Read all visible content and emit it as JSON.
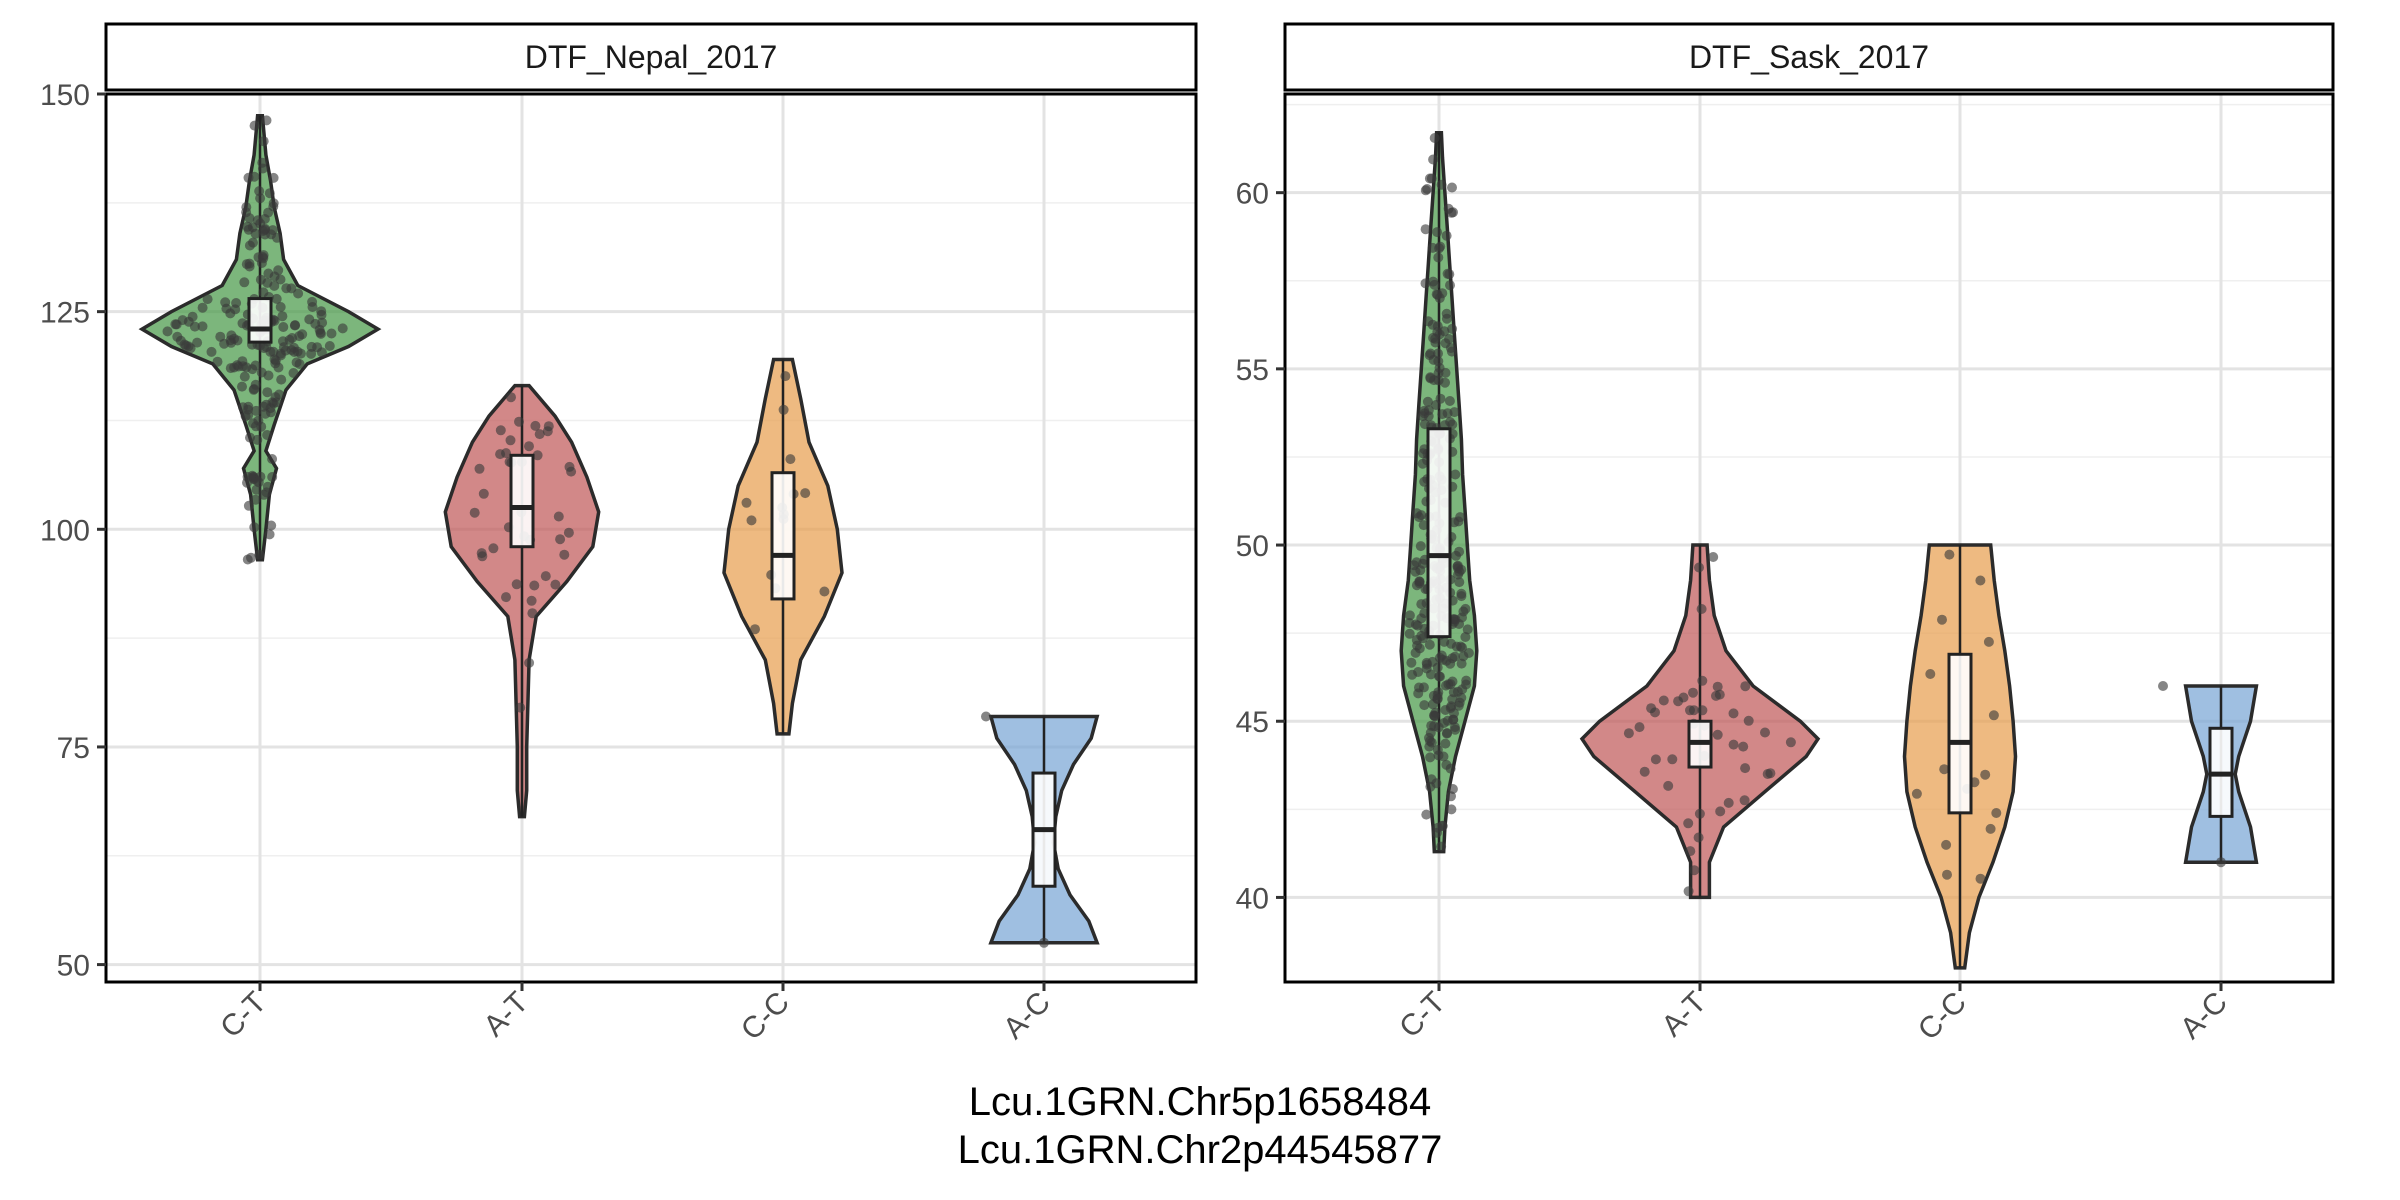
{
  "chart_data": [
    {
      "type": "violin",
      "facet_title": "DTF_Nepal_2017",
      "categories": [
        "C-T",
        "A-T",
        "C-C",
        "A-C"
      ],
      "ylim": [
        48,
        150
      ],
      "yticks": [
        50,
        75,
        100,
        125,
        150
      ],
      "grid": true,
      "series": [
        {
          "category": "C-T",
          "color": "#4a9a4a",
          "min": 96.5,
          "max": 147.5,
          "q1": 121.5,
          "median": 123,
          "q3": 126.5,
          "density": [
            [
              96.5,
              0.02
            ],
            [
              100,
              0.05
            ],
            [
              104,
              0.08
            ],
            [
              107,
              0.14
            ],
            [
              109,
              0.05
            ],
            [
              112,
              0.12
            ],
            [
              116,
              0.22
            ],
            [
              119,
              0.4
            ],
            [
              121,
              0.75
            ],
            [
              123,
              1.0
            ],
            [
              125,
              0.75
            ],
            [
              128,
              0.32
            ],
            [
              131,
              0.2
            ],
            [
              134,
              0.17
            ],
            [
              137,
              0.12
            ],
            [
              140,
              0.09
            ],
            [
              143,
              0.05
            ],
            [
              147.5,
              0.02
            ]
          ],
          "points": 220
        },
        {
          "category": "A-T",
          "color": "#c05a5a",
          "min": 67,
          "max": 116.5,
          "q1": 98,
          "median": 102.5,
          "q3": 108.5,
          "density": [
            [
              67,
              0.02
            ],
            [
              70,
              0.04
            ],
            [
              75,
              0.04
            ],
            [
              80,
              0.05
            ],
            [
              85,
              0.06
            ],
            [
              90,
              0.12
            ],
            [
              94,
              0.38
            ],
            [
              98,
              0.6
            ],
            [
              102,
              0.65
            ],
            [
              106,
              0.55
            ],
            [
              110,
              0.42
            ],
            [
              113,
              0.28
            ],
            [
              116.5,
              0.06
            ]
          ],
          "points": 40
        },
        {
          "category": "C-C",
          "color": "#e8a050",
          "min": 76.5,
          "max": 119.5,
          "q1": 92,
          "median": 97,
          "q3": 106.5,
          "density": [
            [
              76.5,
              0.05
            ],
            [
              80,
              0.08
            ],
            [
              85,
              0.15
            ],
            [
              90,
              0.35
            ],
            [
              95,
              0.5
            ],
            [
              100,
              0.46
            ],
            [
              105,
              0.38
            ],
            [
              110,
              0.22
            ],
            [
              115,
              0.15
            ],
            [
              119.5,
              0.08
            ]
          ],
          "points": 14
        },
        {
          "category": "A-C",
          "color": "#7aa6d6",
          "min": 52.5,
          "max": 78.5,
          "q1": 59,
          "median": 65.5,
          "q3": 72,
          "density": [
            [
              52.5,
              0.45
            ],
            [
              55,
              0.38
            ],
            [
              58,
              0.22
            ],
            [
              61,
              0.12
            ],
            [
              64,
              0.08
            ],
            [
              67,
              0.1
            ],
            [
              70,
              0.15
            ],
            [
              73,
              0.25
            ],
            [
              76,
              0.4
            ],
            [
              78.5,
              0.45
            ]
          ],
          "points": 2
        }
      ]
    },
    {
      "type": "violin",
      "facet_title": "DTF_Sask_2017",
      "categories": [
        "C-T",
        "A-T",
        "C-C",
        "A-C"
      ],
      "ylim": [
        37.6,
        62.8
      ],
      "yticks": [
        40,
        45,
        50,
        55,
        60
      ],
      "grid": true,
      "series": [
        {
          "category": "C-T",
          "color": "#4a9a4a",
          "min": 41.3,
          "max": 61.7,
          "q1": 47.4,
          "median": 49.7,
          "q3": 53.3,
          "density": [
            [
              41.3,
              0.04
            ],
            [
              42,
              0.05
            ],
            [
              43,
              0.08
            ],
            [
              44,
              0.14
            ],
            [
              45,
              0.22
            ],
            [
              46,
              0.3
            ],
            [
              47,
              0.32
            ],
            [
              48,
              0.3
            ],
            [
              49,
              0.26
            ],
            [
              50,
              0.24
            ],
            [
              51,
              0.22
            ],
            [
              52,
              0.2
            ],
            [
              53,
              0.19
            ],
            [
              54,
              0.17
            ],
            [
              55,
              0.15
            ],
            [
              56,
              0.13
            ],
            [
              57,
              0.11
            ],
            [
              58,
              0.09
            ],
            [
              59,
              0.07
            ],
            [
              60,
              0.05
            ],
            [
              61,
              0.03
            ],
            [
              61.7,
              0.02
            ]
          ],
          "points": 300
        },
        {
          "category": "A-T",
          "color": "#c05a5a",
          "min": 40,
          "max": 50,
          "q1": 43.7,
          "median": 44.4,
          "q3": 45,
          "density": [
            [
              40,
              0.08
            ],
            [
              41,
              0.08
            ],
            [
              42,
              0.2
            ],
            [
              43,
              0.55
            ],
            [
              44,
              0.9
            ],
            [
              44.5,
              1.0
            ],
            [
              45,
              0.85
            ],
            [
              46,
              0.45
            ],
            [
              47,
              0.22
            ],
            [
              48,
              0.12
            ],
            [
              49,
              0.08
            ],
            [
              50,
              0.06
            ]
          ],
          "points": 45
        },
        {
          "category": "C-C",
          "color": "#e8a050",
          "min": 38,
          "max": 50,
          "q1": 42.4,
          "median": 44.4,
          "q3": 46.9,
          "density": [
            [
              38,
              0.04
            ],
            [
              39,
              0.08
            ],
            [
              40,
              0.16
            ],
            [
              41,
              0.28
            ],
            [
              42,
              0.38
            ],
            [
              43,
              0.45
            ],
            [
              44,
              0.47
            ],
            [
              45,
              0.45
            ],
            [
              46,
              0.42
            ],
            [
              47,
              0.38
            ],
            [
              48,
              0.33
            ],
            [
              49,
              0.29
            ],
            [
              50,
              0.26
            ]
          ],
          "points": 16
        },
        {
          "category": "A-C",
          "color": "#7aa6d6",
          "min": 41,
          "max": 46,
          "q1": 42.3,
          "median": 43.5,
          "q3": 44.8,
          "density": [
            [
              41,
              0.3
            ],
            [
              42,
              0.25
            ],
            [
              43,
              0.15
            ],
            [
              43.5,
              0.12
            ],
            [
              44,
              0.15
            ],
            [
              45,
              0.25
            ],
            [
              46,
              0.3
            ]
          ],
          "points": 2
        }
      ]
    }
  ],
  "x_axis_title": [
    "Lcu.1GRN.Chr5p1658484",
    "Lcu.1GRN.Chr2p44545877"
  ]
}
